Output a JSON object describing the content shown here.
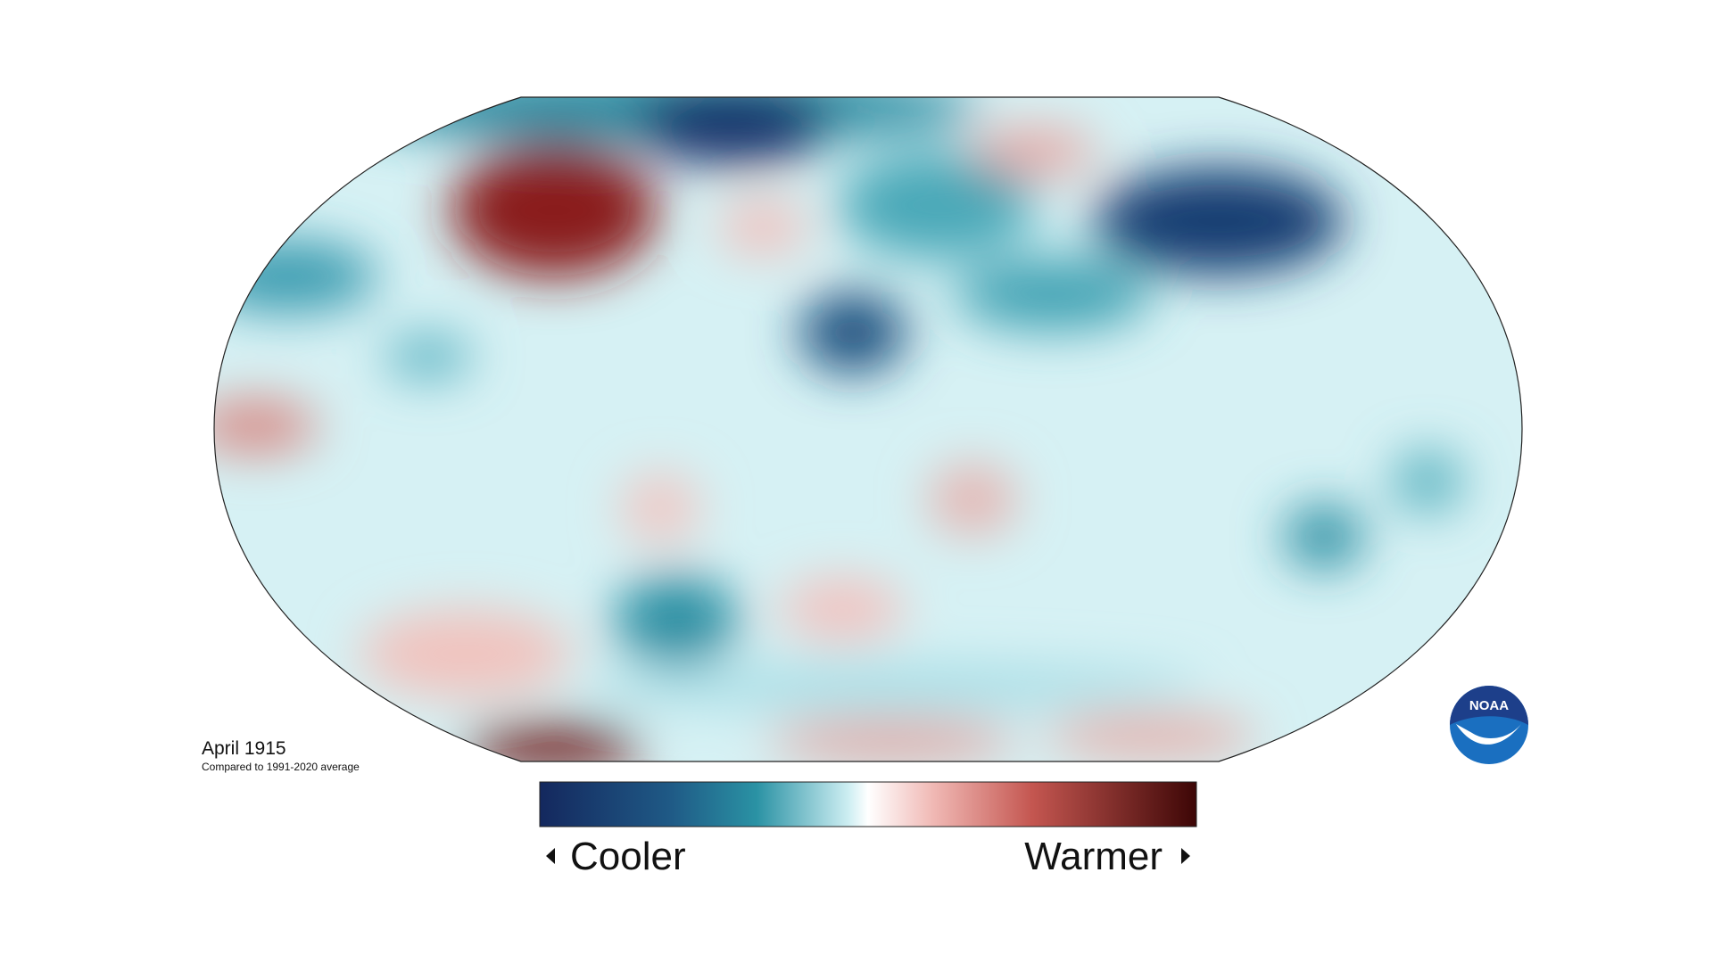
{
  "title": "April 1915",
  "subtitle": "Compared to 1991-2020 average",
  "legend": {
    "low": "Cooler",
    "high": "Warmer"
  },
  "logo": "NOAA"
}
